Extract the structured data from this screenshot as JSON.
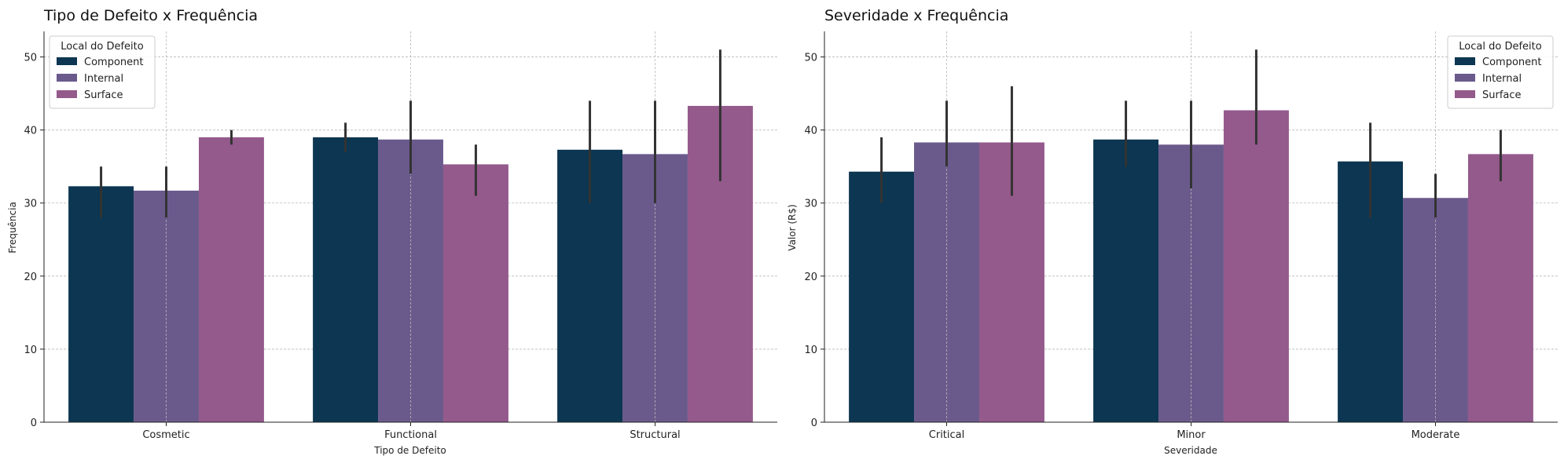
{
  "colors": {
    "component": "#0c3651",
    "internal": "#6a5a8c",
    "surface": "#945a8c",
    "errorbar": "#333333",
    "grid": "#b8b8b8"
  },
  "chart_data": [
    {
      "type": "bar",
      "title": "Tipo de Defeito x Frequência",
      "xlabel": "Tipo de Defeito",
      "ylabel": "Frequência",
      "categories": [
        "Cosmetic",
        "Functional",
        "Structural"
      ],
      "ylim": [
        0,
        53.5
      ],
      "yticks": [
        0,
        10,
        20,
        30,
        40,
        50
      ],
      "grid": true,
      "legend": {
        "title": "Local do Defeito",
        "placement": "top-left"
      },
      "series": [
        {
          "name": "Component",
          "values": [
            32.3,
            39.0,
            37.3
          ],
          "err_low": [
            28.0,
            37.0,
            30.0
          ],
          "err_high": [
            35.0,
            41.0,
            44.0
          ]
        },
        {
          "name": "Internal",
          "values": [
            31.7,
            38.7,
            36.7
          ],
          "err_low": [
            28.0,
            34.0,
            30.0
          ],
          "err_high": [
            35.0,
            44.0,
            44.0
          ]
        },
        {
          "name": "Surface",
          "values": [
            39.0,
            35.3,
            43.3
          ],
          "err_low": [
            38.0,
            31.0,
            33.0
          ],
          "err_high": [
            40.0,
            38.0,
            51.0
          ]
        }
      ]
    },
    {
      "type": "bar",
      "title": "Severidade x Frequência",
      "xlabel": "Severidade",
      "ylabel": "Valor (R$)",
      "categories": [
        "Critical",
        "Minor",
        "Moderate"
      ],
      "ylim": [
        0,
        53.5
      ],
      "yticks": [
        0,
        10,
        20,
        30,
        40,
        50
      ],
      "grid": true,
      "legend": {
        "title": "Local do Defeito",
        "placement": "top-right"
      },
      "series": [
        {
          "name": "Component",
          "values": [
            34.3,
            38.7,
            35.7
          ],
          "err_low": [
            30.0,
            35.0,
            28.0
          ],
          "err_high": [
            39.0,
            44.0,
            41.0
          ]
        },
        {
          "name": "Internal",
          "values": [
            38.3,
            38.0,
            30.7
          ],
          "err_low": [
            35.0,
            32.0,
            28.0
          ],
          "err_high": [
            44.0,
            44.0,
            34.0
          ]
        },
        {
          "name": "Surface",
          "values": [
            38.3,
            42.7,
            36.7
          ],
          "err_low": [
            31.0,
            38.0,
            33.0
          ],
          "err_high": [
            46.0,
            51.0,
            40.0
          ]
        }
      ]
    }
  ]
}
